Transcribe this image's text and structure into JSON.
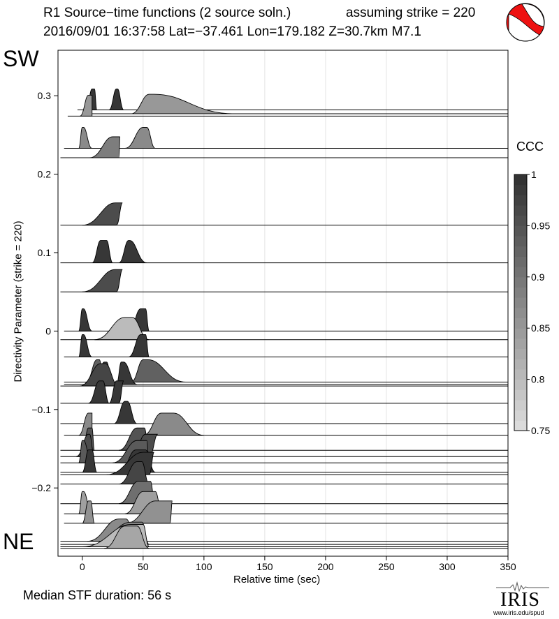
{
  "header": {
    "title_line1": "R1 Source−time functions (2 source soln.)",
    "title_line2": "2016/09/01 16:37:58  Lat=−37.461 Lon=179.182  Z=30.7km  M7.1",
    "strike_text": "assuming strike = 220"
  },
  "labels": {
    "sw": "SW",
    "ne": "NE",
    "median": "Median STF duration: 56 s",
    "ccc": "CCC"
  },
  "logo": {
    "text": "IRIS",
    "url": "www.iris.edu/spud",
    "beachball_icon": "focal-mechanism-beachball-icon"
  },
  "colors": {
    "beachball_fill": "#ee1111",
    "trace_line": "#000000"
  },
  "chart_data": {
    "type": "area",
    "xlabel": "Relative time (sec)",
    "ylabel": "Directivity Parameter (strike = 220)",
    "xlim": [
      -20,
      350
    ],
    "ylim": [
      -0.287,
      0.358
    ],
    "x_ticks": [
      0,
      50,
      100,
      150,
      200,
      250,
      300,
      350
    ],
    "y_ticks": [
      0.3,
      0.2,
      0.1,
      0,
      -0.1,
      -0.2
    ],
    "grid": "vertical",
    "colorbar": {
      "label": "CCC",
      "range": [
        0.75,
        1
      ],
      "ticks": [
        1,
        0.95,
        0.9,
        0.85,
        0.8,
        0.75
      ]
    },
    "traces": [
      {
        "y": 0.282,
        "x0": -4,
        "ccc": 0.99,
        "h": 30,
        "pulses": [
          [
            3,
            8,
            12,
            2
          ],
          [
            22,
            28,
            34,
            1
          ]
        ]
      },
      {
        "y": 0.277,
        "x0": 0,
        "ccc": 0.85,
        "h": 28,
        "pulses": [
          [
            40,
            55,
            125,
            4
          ]
        ]
      },
      {
        "y": 0.274,
        "x0": -12,
        "ccc": 0.85,
        "h": 30,
        "pulses": [
          [
            -2,
            5,
            8,
            3
          ]
        ]
      },
      {
        "y": 0.233,
        "x0": -15,
        "ccc": 0.87,
        "h": 30,
        "pulses": [
          [
            -3,
            0,
            8,
            1
          ],
          [
            35,
            50,
            60,
            3
          ]
        ]
      },
      {
        "y": 0.221,
        "x0": -18,
        "ccc": 0.89,
        "h": 30,
        "pulses": [
          [
            6,
            25,
            30,
            6
          ]
        ]
      },
      {
        "y": 0.135,
        "x0": -18,
        "ccc": 0.96,
        "h": 32,
        "pulses": [
          [
            0,
            27,
            28,
            6
          ]
        ]
      },
      {
        "y": 0.087,
        "x0": -18,
        "ccc": 0.99,
        "h": 32,
        "pulses": [
          [
            8,
            15,
            25,
            5
          ],
          [
            30,
            38,
            53,
            1
          ]
        ]
      },
      {
        "y": 0.05,
        "x0": -18,
        "ccc": 0.96,
        "h": 32,
        "pulses": [
          [
            0,
            27,
            28,
            6
          ]
        ]
      },
      {
        "y": 0.0,
        "x0": -15,
        "ccc": 0.99,
        "h": 32,
        "pulses": [
          [
            -3,
            0,
            8,
            1
          ],
          [
            38,
            48,
            55,
            4
          ]
        ]
      },
      {
        "y": -0.011,
        "x0": -18,
        "ccc": 0.8,
        "h": 32,
        "pulses": [
          [
            10,
            35,
            55,
            6
          ]
        ]
      },
      {
        "y": -0.033,
        "x0": -15,
        "ccc": 0.99,
        "h": 32,
        "pulses": [
          [
            -3,
            0,
            8,
            1
          ],
          [
            38,
            48,
            55,
            4
          ]
        ]
      },
      {
        "y": -0.065,
        "x0": -15,
        "ccc": 0.93,
        "h": 32,
        "pulses": [
          [
            3,
            12,
            18,
            2
          ],
          [
            40,
            50,
            85,
            4
          ]
        ]
      },
      {
        "y": -0.068,
        "x0": -15,
        "ccc": 0.99,
        "h": 32,
        "pulses": [
          [
            10,
            18,
            25,
            2
          ],
          [
            28,
            32,
            45,
            2
          ]
        ]
      },
      {
        "y": -0.07,
        "x0": -18,
        "ccc": 0.97,
        "h": 32,
        "pulses": [
          [
            -2,
            15,
            30,
            4
          ]
        ]
      },
      {
        "y": -0.092,
        "x0": -18,
        "ccc": 0.99,
        "h": 32,
        "pulses": [
          [
            5,
            14,
            22,
            3
          ],
          [
            22,
            28,
            30,
            6
          ]
        ]
      },
      {
        "y": -0.118,
        "x0": -18,
        "ccc": 0.99,
        "h": 32,
        "pulses": [
          [
            26,
            35,
            45,
            2
          ]
        ]
      },
      {
        "y": -0.133,
        "x0": -15,
        "ccc": 0.87,
        "h": 32,
        "pulses": [
          [
            -3,
            5,
            8,
            3
          ],
          [
            50,
            65,
            100,
            10
          ]
        ]
      },
      {
        "y": -0.152,
        "x0": -18,
        "ccc": 0.95,
        "h": 32,
        "pulses": [
          [
            0,
            5,
            10,
            3
          ],
          [
            30,
            45,
            55,
            6
          ]
        ]
      },
      {
        "y": -0.16,
        "x0": -18,
        "ccc": 0.96,
        "h": 32,
        "pulses": [
          [
            -5,
            5,
            10,
            1
          ],
          [
            40,
            52,
            55,
            10
          ]
        ]
      },
      {
        "y": -0.168,
        "x0": -18,
        "ccc": 0.94,
        "h": 32,
        "pulses": [
          [
            -3,
            0,
            8,
            1
          ],
          [
            25,
            45,
            55,
            8
          ]
        ]
      },
      {
        "y": -0.18,
        "x0": -18,
        "ccc": 0.99,
        "h": 32,
        "pulses": [
          [
            0,
            5,
            12,
            3
          ],
          [
            30,
            44,
            60,
            8
          ]
        ]
      },
      {
        "y": -0.183,
        "x0": -18,
        "ccc": 0.99,
        "h": 32,
        "pulses": [
          [
            20,
            50,
            55,
            9
          ]
        ]
      },
      {
        "y": -0.195,
        "x0": -18,
        "ccc": 0.97,
        "h": 32,
        "pulses": [
          [
            30,
            45,
            55,
            4
          ]
        ]
      },
      {
        "y": -0.22,
        "x0": -18,
        "ccc": 0.91,
        "h": 32,
        "pulses": [
          [
            30,
            46,
            60,
            10
          ]
        ]
      },
      {
        "y": -0.233,
        "x0": -15,
        "ccc": 0.84,
        "h": 32,
        "pulses": [
          [
            -3,
            0,
            8,
            1
          ],
          [
            35,
            50,
            66,
            10
          ]
        ]
      },
      {
        "y": -0.245,
        "x0": -15,
        "ccc": 0.86,
        "h": 32,
        "pulses": [
          [
            0,
            5,
            10,
            2
          ],
          [
            36,
            60,
            72,
            14
          ]
        ]
      },
      {
        "y": -0.268,
        "x0": -18,
        "ccc": 0.87,
        "h": 32,
        "pulses": [
          [
            4,
            30,
            45,
            6
          ]
        ]
      },
      {
        "y": -0.272,
        "x0": -18,
        "ccc": 0.88,
        "h": 32,
        "pulses": [
          [
            8,
            40,
            55,
            9
          ]
        ]
      },
      {
        "y": -0.275,
        "x0": -18,
        "ccc": 0.8,
        "h": 32,
        "pulses": [
          [
            0,
            40,
            55,
            10
          ]
        ]
      },
      {
        "y": -0.277,
        "x0": -18,
        "ccc": 0.83,
        "h": 32,
        "pulses": [
          [
            18,
            35,
            55,
            10
          ]
        ]
      }
    ],
    "median_duration_s": 56
  }
}
